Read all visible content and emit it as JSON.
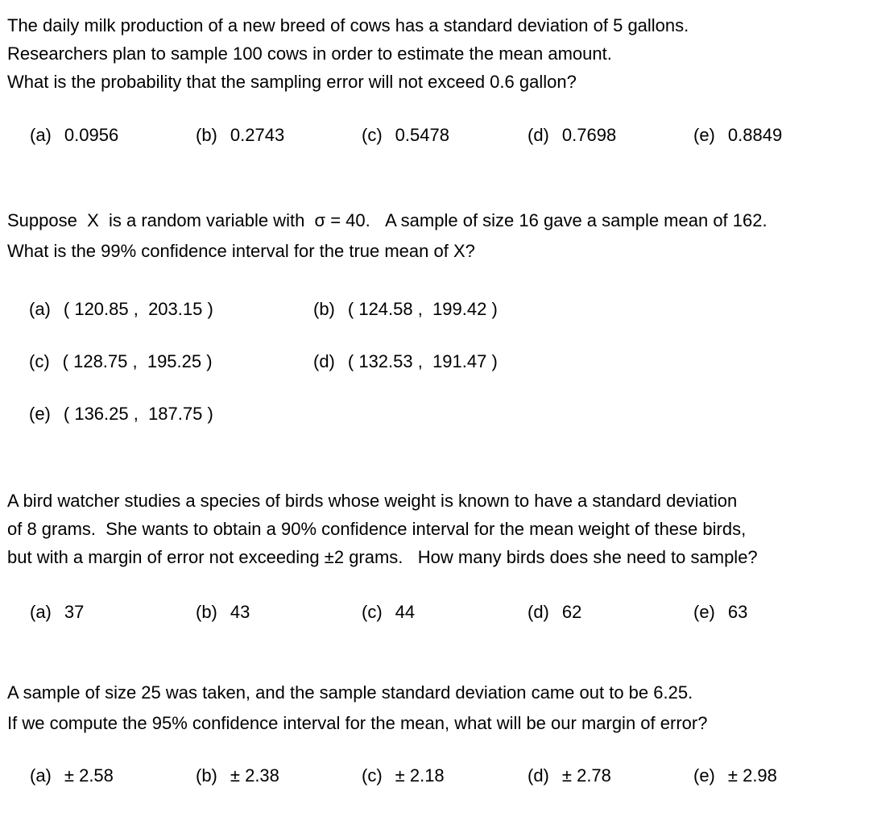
{
  "document": {
    "questions": [
      {
        "lines": [
          "The daily milk production of a new breed of cows has a standard deviation of 5 gallons.",
          "Researchers plan to sample 100 cows in order to estimate the mean amount.",
          "What is the probability that the sampling error will not exceed 0.6 gallon?"
        ],
        "options": [
          {
            "label": "(a)",
            "value": "0.0956"
          },
          {
            "label": "(b)",
            "value": "0.2743"
          },
          {
            "label": "(c)",
            "value": "0.5478"
          },
          {
            "label": "(d)",
            "value": "0.7698"
          },
          {
            "label": "(e)",
            "value": "0.8849"
          }
        ]
      },
      {
        "lines": [
          "Suppose  X  is a random variable with  σ = 40.   A sample of size 16 gave a sample mean of 162.",
          "What is the 99% confidence interval for the true mean of X?"
        ],
        "options": [
          {
            "label": "(a)",
            "value": "( 120.85 ,  203.15 )"
          },
          {
            "label": "(b)",
            "value": "( 124.58 ,  199.42 )"
          },
          {
            "label": "(c)",
            "value": "( 128.75 ,  195.25 )"
          },
          {
            "label": "(d)",
            "value": "( 132.53 ,  191.47 )"
          },
          {
            "label": "(e)",
            "value": "( 136.25 ,  187.75 )"
          }
        ]
      },
      {
        "lines": [
          "A bird watcher studies a species of birds whose weight is known to have a standard deviation",
          "of 8 grams.  She wants to obtain a 90% confidence interval for the mean weight of these birds,",
          "but with a margin of error not exceeding ±2 grams.   How many birds does she need to sample?"
        ],
        "options": [
          {
            "label": "(a)",
            "value": "37"
          },
          {
            "label": "(b)",
            "value": "43"
          },
          {
            "label": "(c)",
            "value": "44"
          },
          {
            "label": "(d)",
            "value": "62"
          },
          {
            "label": "(e)",
            "value": "63"
          }
        ]
      },
      {
        "lines": [
          "A sample of size 25 was taken, and the sample standard deviation came out to be 6.25.",
          "If we compute the 95% confidence interval for the mean, what will be our margin of error?"
        ],
        "options": [
          {
            "label": "(a)",
            "value": "± 2.58"
          },
          {
            "label": "(b)",
            "value": "± 2.38"
          },
          {
            "label": "(c)",
            "value": "± 2.18"
          },
          {
            "label": "(d)",
            "value": "± 2.78"
          },
          {
            "label": "(e)",
            "value": "± 2.98"
          }
        ]
      }
    ]
  }
}
